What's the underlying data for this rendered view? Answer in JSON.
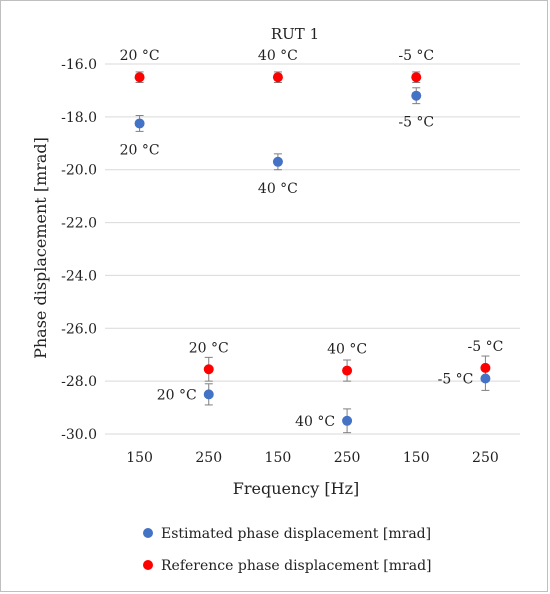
{
  "chart_data": {
    "type": "scatter",
    "title": "RUT 1",
    "xlabel": "Frequency [Hz]",
    "ylabel": "Phase displacement [mrad]",
    "categories": [
      "150",
      "250",
      "150",
      "250",
      "150",
      "250"
    ],
    "ylim": [
      -31.0,
      -15.4
    ],
    "yticks": [
      "-16.0",
      "-18.0",
      "-20.0",
      "-22.0",
      "-24.0",
      "-26.0",
      "-28.0",
      "-30.0"
    ],
    "ytick_values": [
      -16.0,
      -18.0,
      -20.0,
      -22.0,
      -24.0,
      -26.0,
      -28.0,
      -30.0
    ],
    "grid": "horizontal",
    "legend_position": "bottom",
    "series": [
      {
        "name": "Estimated phase displacement [mrad]",
        "color": "#4472c4",
        "values": [
          -18.25,
          -28.5,
          -19.7,
          -29.5,
          -17.2,
          -27.9
        ],
        "errors": [
          0.3,
          0.4,
          0.3,
          0.45,
          0.3,
          0.45
        ],
        "labels": [
          "20 °C",
          "20 °C",
          "40 °C",
          "40 °C",
          "-5 °C",
          "-5 °C"
        ],
        "label_positions": [
          "below",
          "left",
          "below",
          "left",
          "below",
          "left"
        ]
      },
      {
        "name": "Reference phase displacement [mrad]",
        "color": "#ff0000",
        "values": [
          -16.5,
          -27.55,
          -16.5,
          -27.6,
          -16.5,
          -27.5
        ],
        "errors": [
          0.2,
          0.45,
          0.2,
          0.4,
          0.2,
          0.45
        ],
        "labels": [
          "20 °C",
          "20 °C",
          "40 °C",
          "40 °C",
          "-5 °C",
          "-5 °C"
        ],
        "label_positions": [
          "above",
          "above",
          "above",
          "above",
          "above",
          "above"
        ]
      }
    ]
  }
}
